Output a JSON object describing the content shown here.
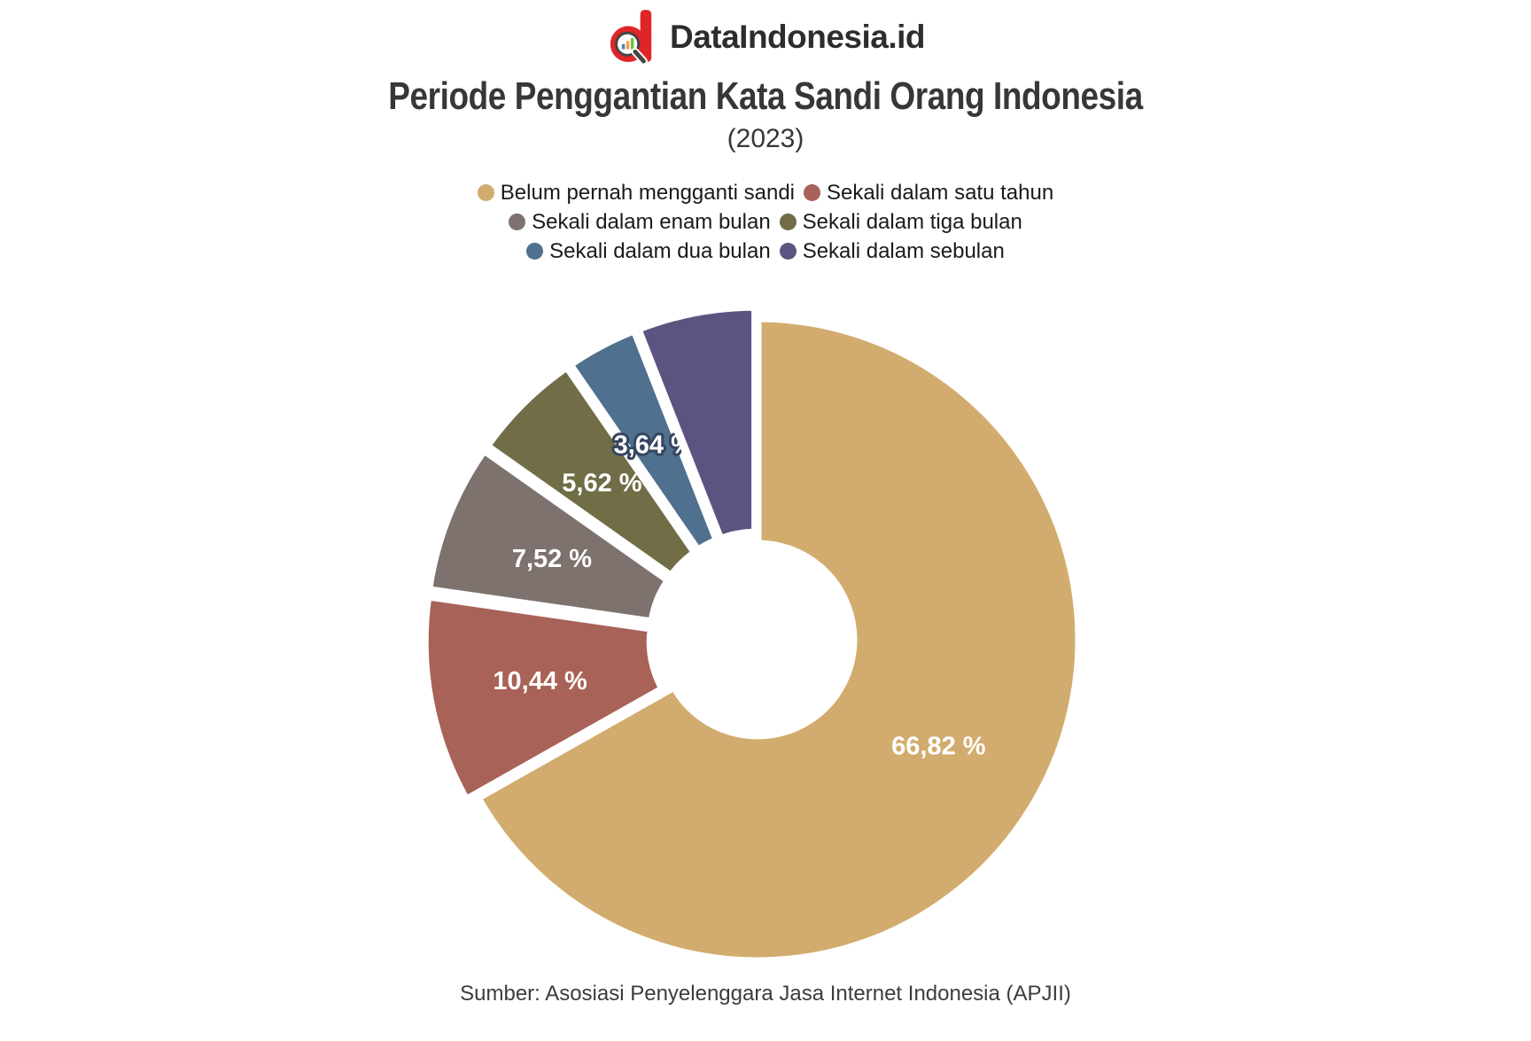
{
  "brand": {
    "name": "DataIndonesia.id"
  },
  "header": {
    "title": "Periode Penggantian Kata Sandi Orang Indonesia",
    "subtitle": "(2023)"
  },
  "source": "Sumber: Asosiasi Penyelenggara Jasa Internet Indonesia (APJII)",
  "chart_data": {
    "type": "pie",
    "variant": "donut",
    "title": "Periode Penggantian Kata Sandi Orang Indonesia",
    "subtitle": "(2023)",
    "unit": "%",
    "start_angle_deg": 0,
    "direction": "clockwise",
    "legend_position": "top",
    "label_color": "#ffffff",
    "label_halo_color": "#35455F",
    "series": [
      {
        "name": "Belum pernah mengganti sandi",
        "value": 66.82,
        "label": "66,82 %",
        "color": "#D2AC6E"
      },
      {
        "name": "Sekali dalam satu tahun",
        "value": 10.44,
        "label": "10,44 %",
        "color": "#A86258"
      },
      {
        "name": "Sekali dalam enam bulan",
        "value": 7.52,
        "label": "7,52 %",
        "color": "#7E726E"
      },
      {
        "name": "Sekali dalam tiga bulan",
        "value": 5.62,
        "label": "5,62 %",
        "color": "#706D47"
      },
      {
        "name": "Sekali dalam dua bulan",
        "value": 3.64,
        "label": "3,64 %",
        "color": "#4F708E"
      },
      {
        "name": "Sekali dalam sebulan",
        "value": 5.96,
        "label": "",
        "color": "#5D5380"
      }
    ]
  }
}
